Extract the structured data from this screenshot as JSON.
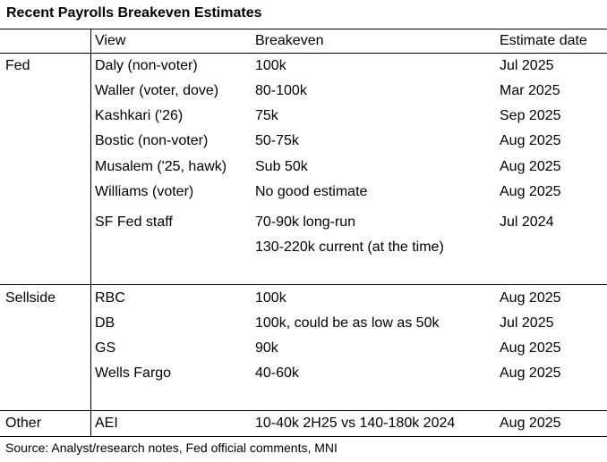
{
  "title": "Recent Payrolls Breakeven Estimates",
  "headers": {
    "view": "View",
    "breakeven": "Breakeven",
    "date": "Estimate date"
  },
  "groups": [
    {
      "label": "Fed",
      "rows": [
        {
          "view": "Daly (non-voter)",
          "breakeven": "100k",
          "date": "Jul 2025"
        },
        {
          "view": "Waller (voter, dove)",
          "breakeven": "80-100k",
          "date": "Mar 2025"
        },
        {
          "view": "Kashkari ('26)",
          "breakeven": "75k",
          "date": "Sep 2025"
        },
        {
          "view": "Bostic (non-voter)",
          "breakeven": "50-75k",
          "date": "Aug 2025"
        },
        {
          "view": "Musalem ('25, hawk)",
          "breakeven": "Sub 50k",
          "date": "Aug 2025"
        },
        {
          "view": "Williams (voter)",
          "breakeven": "No good estimate",
          "date": "Aug 2025"
        },
        {
          "view": "SF Fed staff",
          "breakeven": "70-90k long-run",
          "breakeven_2": "130-220k current (at the time)",
          "date": "Jul 2024"
        }
      ]
    },
    {
      "label": "Sellside",
      "rows": [
        {
          "view": "RBC",
          "breakeven": "100k",
          "date": "Aug 2025"
        },
        {
          "view": "DB",
          "breakeven": "100k, could be as low as 50k",
          "date": "Jul 2025"
        },
        {
          "view": "GS",
          "breakeven": "90k",
          "date": "Aug 2025"
        },
        {
          "view": "Wells Fargo",
          "breakeven": "40-60k",
          "date": "Aug 2025"
        }
      ]
    },
    {
      "label": "Other",
      "rows": [
        {
          "view": "AEI",
          "breakeven": "10-40k 2H25 vs 140-180k 2024",
          "date": "Aug 2025"
        }
      ]
    }
  ],
  "source": "Source: Analyst/research notes, Fed official comments, MNI"
}
